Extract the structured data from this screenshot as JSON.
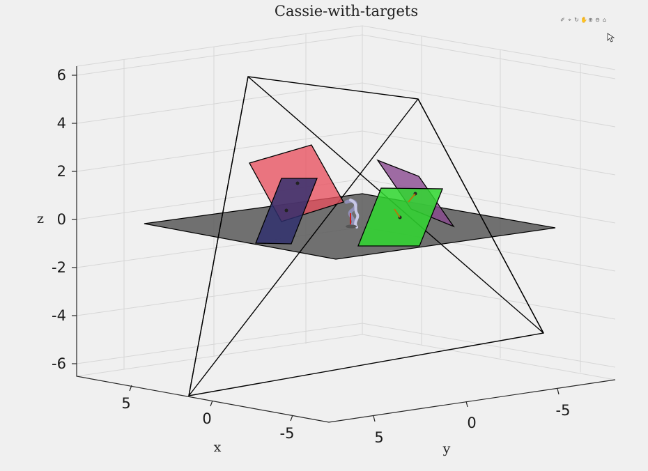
{
  "chart_data": {
    "type": "3d-scene",
    "title": "Cassie-with-targets",
    "xlabel": "x",
    "ylabel": "y",
    "zlabel": "z",
    "x_ticks": [
      "5",
      "0",
      "-5"
    ],
    "y_ticks": [
      "5",
      "0",
      "-5"
    ],
    "z_ticks": [
      "6",
      "4",
      "2",
      "0",
      "-2",
      "-4",
      "-6"
    ],
    "grid": true,
    "objects": [
      {
        "name": "ground-plane",
        "color": "#595959"
      },
      {
        "name": "red-target",
        "color": "#e8515f"
      },
      {
        "name": "navy-target",
        "color": "#2e2e6e"
      },
      {
        "name": "purple-target",
        "color": "#8a4a90"
      },
      {
        "name": "green-target",
        "color": "#2fd72f"
      },
      {
        "name": "camera-frustum",
        "color": "#000000"
      },
      {
        "name": "cassie-robot",
        "color": "#b8b8d8"
      }
    ]
  },
  "toolbar": {
    "icons": [
      "brush-icon",
      "data-tip-icon",
      "rotate-icon",
      "pan-icon",
      "zoom-in-icon",
      "zoom-out-icon",
      "home-icon"
    ]
  }
}
